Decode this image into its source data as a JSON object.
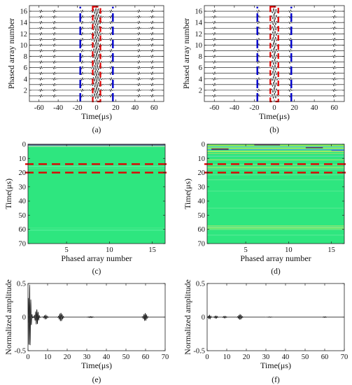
{
  "chart_data": [
    {
      "id": "a",
      "type": "line",
      "panel_label": "(a)",
      "xlabel": "Time(μs)",
      "ylabel": "Phased array number",
      "xlim": [
        -70,
        70
      ],
      "ylim": [
        0,
        17
      ],
      "xticks": [
        -60,
        -40,
        -20,
        0,
        20,
        40,
        60
      ],
      "yticks": [
        2,
        4,
        6,
        8,
        10,
        12,
        14,
        16
      ],
      "channels": [
        1,
        2,
        3,
        4,
        5,
        6,
        7,
        8,
        9,
        10,
        11,
        12,
        13,
        14,
        15,
        16
      ],
      "line_color": "#000000",
      "center_burst_halfwidth_us": 5,
      "side_echo_times_us": [
        -58,
        -44,
        -15,
        15,
        44,
        58
      ],
      "annotations": [
        {
          "kind": "dashed-box",
          "color": "#e00000",
          "x": [
            -4,
            4
          ],
          "y": [
            0,
            16.8
          ]
        },
        {
          "kind": "dashed-vline",
          "color": "#0000cc",
          "x": -17,
          "y": [
            0,
            16.8
          ]
        },
        {
          "kind": "dashed-vline",
          "color": "#0000cc",
          "x": 17,
          "y": [
            0,
            16.8
          ]
        }
      ]
    },
    {
      "id": "b",
      "type": "line",
      "panel_label": "(b)",
      "xlabel": "Time(μs)",
      "ylabel": "Phased array number",
      "xlim": [
        -70,
        70
      ],
      "ylim": [
        0,
        17
      ],
      "xticks": [
        -60,
        -40,
        -20,
        0,
        20,
        40,
        60
      ],
      "yticks": [
        2,
        4,
        6,
        8,
        10,
        12,
        14,
        16
      ],
      "channels": [
        1,
        2,
        3,
        4,
        5,
        6,
        7,
        8,
        9,
        10,
        11,
        12,
        13,
        14,
        15,
        16
      ],
      "line_color": "#000000",
      "center_burst_halfwidth_us": 3,
      "side_echo_times_us": [
        -60,
        -16,
        16,
        60
      ],
      "annotations": [
        {
          "kind": "dashed-box",
          "color": "#e00000",
          "x": [
            -4,
            4
          ],
          "y": [
            0,
            16.8
          ]
        },
        {
          "kind": "dashed-vline",
          "color": "#0000cc",
          "x": -17,
          "y": [
            0,
            16.8
          ]
        },
        {
          "kind": "dashed-vline",
          "color": "#0000cc",
          "x": 17,
          "y": [
            0,
            16.8
          ]
        }
      ]
    },
    {
      "id": "c",
      "type": "heatmap",
      "panel_label": "(c)",
      "xlabel": "Phased array number",
      "ylabel": "Time(μs)",
      "xlim": [
        0.5,
        16.5
      ],
      "ylim": [
        0,
        70
      ],
      "y_inverted": true,
      "xticks": [
        5,
        10,
        15
      ],
      "yticks": [
        0,
        10,
        20,
        30,
        40,
        50,
        60,
        70
      ],
      "background_color": "#2ee67f",
      "bands": [
        {
          "t": 0.3,
          "color": "#4a3a6a"
        },
        {
          "t": 1.0,
          "color": "#6d8fb0"
        },
        {
          "t": 1.6,
          "color": "#9ef0a4"
        },
        {
          "t": 15.5,
          "color": "#5cf2a0"
        },
        {
          "t": 16.8,
          "color": "#46ea8c"
        },
        {
          "t": 59.0,
          "color": "#44e88a"
        },
        {
          "t": 60.5,
          "color": "#52ee98"
        }
      ],
      "annotations": [
        {
          "kind": "dashed-hline",
          "color": "#e00000",
          "y": 14
        },
        {
          "kind": "dashed-hline",
          "color": "#e00000",
          "y": 20
        }
      ]
    },
    {
      "id": "d",
      "type": "heatmap",
      "panel_label": "(d)",
      "xlabel": "Phased array number",
      "ylabel": "Time(μs)",
      "xlim": [
        0.5,
        16.5
      ],
      "ylim": [
        0,
        70
      ],
      "y_inverted": true,
      "xticks": [
        5,
        10,
        15
      ],
      "yticks": [
        0,
        10,
        20,
        30,
        40,
        50,
        60,
        70
      ],
      "background_color": "#2ee67f",
      "bands": [
        {
          "t": 0.8,
          "color": "#b8e84a"
        },
        {
          "t": 1.8,
          "color": "#7bd0c0"
        },
        {
          "t": 2.8,
          "color": "#c8ec50"
        },
        {
          "t": 3.8,
          "color": "#5aa8d8"
        },
        {
          "t": 5.0,
          "color": "#d4ef56"
        },
        {
          "t": 6.5,
          "color": "#8fe06a"
        },
        {
          "t": 8.5,
          "color": "#62d8a6"
        },
        {
          "t": 11.0,
          "color": "#9ae66e"
        },
        {
          "t": 14.5,
          "color": "#7fe27c"
        },
        {
          "t": 16.2,
          "color": "#a9ec6a"
        },
        {
          "t": 17.4,
          "color": "#72dc8e"
        },
        {
          "t": 21.5,
          "color": "#58e590"
        },
        {
          "t": 25.0,
          "color": "#5ae792"
        },
        {
          "t": 33.0,
          "color": "#4de88e"
        },
        {
          "t": 45.0,
          "color": "#4ee98f"
        },
        {
          "t": 57.5,
          "color": "#8ee870"
        },
        {
          "t": 58.3,
          "color": "#62e690"
        },
        {
          "t": 59.0,
          "color": "#a8ec68"
        },
        {
          "t": 60.0,
          "color": "#74e684"
        },
        {
          "t": 64.0,
          "color": "#52ea94"
        }
      ],
      "blocks": [
        {
          "x": [
            1,
            3
          ],
          "t": [
            3.0,
            4.0
          ],
          "color": "#4a3a6a"
        },
        {
          "x": [
            6,
            9
          ],
          "t": [
            0.0,
            0.8
          ],
          "color": "#4a3a6a"
        },
        {
          "x": [
            12,
            14
          ],
          "t": [
            2.0,
            2.8
          ],
          "color": "#4a3a6a"
        },
        {
          "x": [
            15,
            16.5
          ],
          "t": [
            4.0,
            4.8
          ],
          "color": "#3a7fc8"
        }
      ],
      "annotations": [
        {
          "kind": "dashed-hline",
          "color": "#e00000",
          "y": 14
        },
        {
          "kind": "dashed-hline",
          "color": "#e00000",
          "y": 20
        }
      ]
    },
    {
      "id": "e",
      "type": "line",
      "panel_label": "(e)",
      "xlabel": "Time(μs)",
      "ylabel": "Normalized amplitude",
      "xlim": [
        0,
        70
      ],
      "ylim": [
        -0.5,
        0.5
      ],
      "xticks": [
        0,
        10,
        20,
        30,
        40,
        50,
        60,
        70
      ],
      "yticks": [
        -0.5,
        0,
        0.5
      ],
      "line_color": "#000000",
      "bursts": [
        {
          "t0": 0.8,
          "amp": 0.5,
          "width": 0.8,
          "freq": 1.6
        },
        {
          "t0": 4.5,
          "amp": 0.12,
          "width": 1.0,
          "freq": 1.6
        },
        {
          "t0": 9.0,
          "amp": 0.03,
          "width": 1.0,
          "freq": 1.6
        },
        {
          "t0": 16.8,
          "amp": 0.065,
          "width": 1.0,
          "freq": 1.6
        },
        {
          "t0": 32.0,
          "amp": 0.01,
          "width": 1.5,
          "freq": 1.6
        },
        {
          "t0": 59.8,
          "amp": 0.06,
          "width": 1.0,
          "freq": 1.6
        }
      ]
    },
    {
      "id": "f",
      "type": "line",
      "panel_label": "(f)",
      "xlabel": "Time(μs)",
      "ylabel": "Normalized amplitude",
      "xlim": [
        0,
        70
      ],
      "ylim": [
        -0.5,
        0.5
      ],
      "xticks": [
        0,
        10,
        20,
        30,
        40,
        50,
        60,
        70
      ],
      "yticks": [
        -0.5,
        0,
        0.5
      ],
      "line_color": "#000000",
      "bursts": [
        {
          "t0": 1.2,
          "amp": 0.03,
          "width": 0.8,
          "freq": 1.6
        },
        {
          "t0": 4.5,
          "amp": 0.02,
          "width": 0.9,
          "freq": 1.6
        },
        {
          "t0": 9.0,
          "amp": 0.015,
          "width": 1.0,
          "freq": 1.6
        },
        {
          "t0": 16.8,
          "amp": 0.04,
          "width": 1.0,
          "freq": 1.6
        },
        {
          "t0": 32.0,
          "amp": 0.005,
          "width": 1.5,
          "freq": 1.6
        },
        {
          "t0": 60.0,
          "amp": 0.008,
          "width": 1.0,
          "freq": 1.6
        }
      ]
    }
  ]
}
